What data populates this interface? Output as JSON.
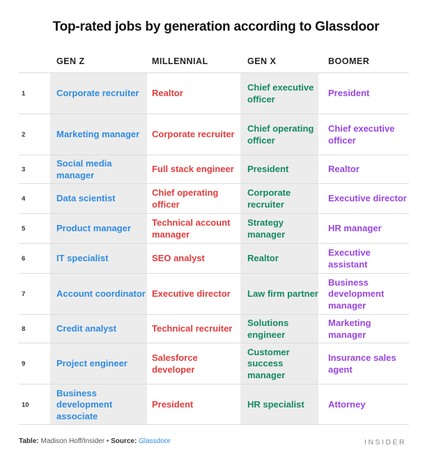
{
  "chart_data": {
    "type": "table",
    "title": "Top-rated jobs by generation according to Glassdoor",
    "columns": [
      "GEN Z",
      "MILLENNIAL",
      "GEN X",
      "BOOMER"
    ],
    "rows": [
      {
        "rank": "1",
        "genz": "Corporate recruiter",
        "millennial": "Realtor",
        "genx": "Chief executive officer",
        "boomer": "President"
      },
      {
        "rank": "2",
        "genz": "Marketing manager",
        "millennial": "Corporate recruiter",
        "genx": "Chief operating officer",
        "boomer": "Chief executive officer"
      },
      {
        "rank": "3",
        "genz": "Social media manager",
        "millennial": "Full stack engineer",
        "genx": "President",
        "boomer": "Realtor"
      },
      {
        "rank": "4",
        "genz": "Data scientist",
        "millennial": "Chief operating officer",
        "genx": "Corporate recruiter",
        "boomer": "Executive director"
      },
      {
        "rank": "5",
        "genz": "Product manager",
        "millennial": "Technical account manager",
        "genx": "Strategy manager",
        "boomer": "HR manager"
      },
      {
        "rank": "6",
        "genz": "IT specialist",
        "millennial": "SEO analyst",
        "genx": "Realtor",
        "boomer": "Executive assistant"
      },
      {
        "rank": "7",
        "genz": "Account coordinator",
        "millennial": "Executive director",
        "genx": "Law firm partner",
        "boomer": "Business development manager"
      },
      {
        "rank": "8",
        "genz": "Credit analyst",
        "millennial": "Technical recruiter",
        "genx": "Solutions engineer",
        "boomer": "Marketing manager"
      },
      {
        "rank": "9",
        "genz": "Project engineer",
        "millennial": "Salesforce developer",
        "genx": "Customer success manager",
        "boomer": "Insurance sales agent"
      },
      {
        "rank": "10",
        "genz": "Business development associate",
        "millennial": "President",
        "genx": "HR specialist",
        "boomer": "Attorney"
      }
    ],
    "colors": {
      "genz": "#2f8be0",
      "millennial": "#e23c3c",
      "genx": "#138a5e",
      "boomer": "#9a45e0",
      "shade": "#ececec"
    }
  },
  "footer": {
    "table_label": "Table:",
    "table_credit": " Madison Hoff/Insider • ",
    "source_label": "Source:",
    "source_name": " Glassdoor"
  },
  "brand": "INSIDER"
}
